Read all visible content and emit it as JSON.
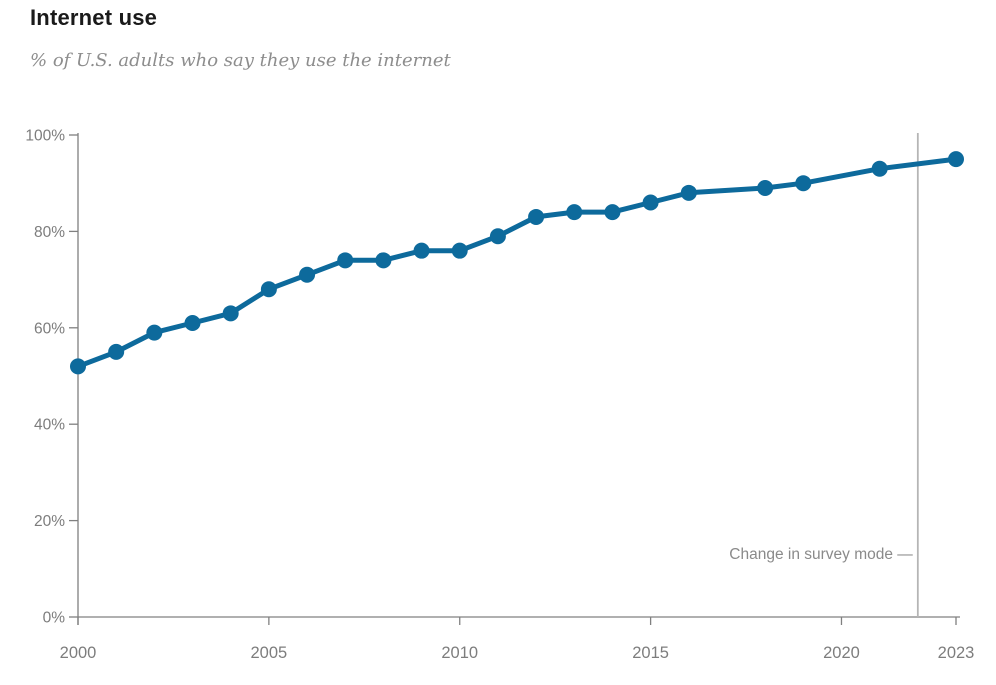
{
  "header": {
    "title": "Internet use",
    "subtitle": "% of U.S. adults who say they use the internet"
  },
  "chart_data": {
    "type": "line",
    "title": "Internet use",
    "subtitle": "% of U.S. adults who say they use the internet",
    "series": [
      {
        "name": "% of U.S. adults who use the internet",
        "x": [
          2000,
          2001,
          2002,
          2003,
          2004,
          2005,
          2006,
          2007,
          2008,
          2009,
          2010,
          2011,
          2012,
          2013,
          2014,
          2015,
          2016,
          2018,
          2019,
          2021,
          2023
        ],
        "values": [
          52,
          55,
          59,
          61,
          63,
          68,
          71,
          74,
          74,
          76,
          76,
          79,
          83,
          84,
          84,
          86,
          88,
          89,
          90,
          93,
          95
        ]
      }
    ],
    "xlabel": "",
    "ylabel": "",
    "xlim": [
      2000,
      2023
    ],
    "ylim": [
      0,
      100
    ],
    "grid": false,
    "legend": "none",
    "x_ticks": [
      2000,
      2005,
      2010,
      2015,
      2020,
      2023
    ],
    "x_tick_labels": [
      "2000",
      "2005",
      "2010",
      "2015",
      "2020",
      "2023"
    ],
    "y_ticks": [
      0,
      20,
      40,
      60,
      80,
      100
    ],
    "y_tick_labels": [
      "0%",
      "20%",
      "40%",
      "60%",
      "80%",
      "100%"
    ],
    "annotation": {
      "text": "Change in survey mode —",
      "year": 2022
    },
    "colors": {
      "line": "#0d6a9c",
      "title": "#1a1a1a",
      "subtitle": "#8d8d8d",
      "axis": "#808080",
      "tick_label": "#7d7d7d",
      "annotation_text": "#8a8a8a",
      "annotation_line": "#b5b5b5"
    }
  }
}
